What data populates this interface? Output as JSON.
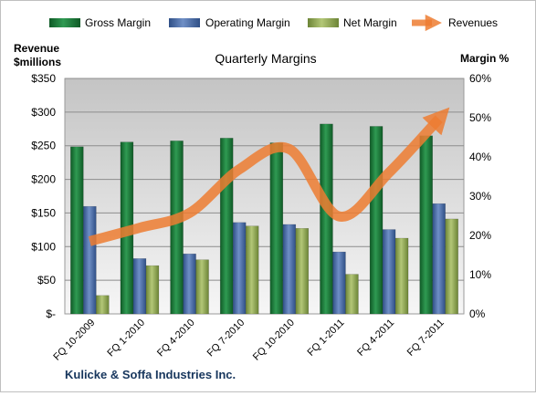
{
  "chart_data": {
    "type": "bar",
    "title": "Quarterly Margins",
    "company": "Kulicke & Soffa Industries Inc.",
    "left_axis": {
      "label_line1": "Revenue",
      "label_line2": "$millions",
      "range": [
        0,
        350
      ],
      "ticks": [
        "$-",
        "$50",
        "$100",
        "$150",
        "$200",
        "$250",
        "$300",
        "$350"
      ]
    },
    "right_axis": {
      "label": "Margin %",
      "range": [
        0,
        60
      ],
      "ticks": [
        "0%",
        "10%",
        "20%",
        "30%",
        "40%",
        "50%",
        "60%"
      ]
    },
    "categories": [
      "FQ 10-2009",
      "FQ 1-2010",
      "FQ 4-2010",
      "FQ 7-2010",
      "FQ 10-2010",
      "FQ 1-2011",
      "FQ 4-2011",
      "FQ 7-2011"
    ],
    "series": [
      {
        "name": "Gross Margin",
        "axis": "right",
        "kind": "bar",
        "color": "#1e7b3c",
        "values": [
          42.6,
          43.8,
          44.1,
          44.8,
          43.6,
          48.4,
          47.8,
          45.4
        ]
      },
      {
        "name": "Operating Margin",
        "axis": "right",
        "kind": "bar",
        "color": "#4a6faa",
        "values": [
          27.4,
          14.1,
          15.3,
          23.3,
          22.8,
          15.8,
          21.5,
          28.1
        ]
      },
      {
        "name": "Net Margin",
        "axis": "right",
        "kind": "bar",
        "color": "#90a84f",
        "values": [
          4.7,
          12.3,
          13.8,
          22.4,
          21.8,
          10.1,
          19.3,
          24.2
        ]
      },
      {
        "name": "Revenues",
        "axis": "left",
        "kind": "line",
        "color": "#ed7d31",
        "values": [
          108,
          128,
          150,
          215,
          245,
          145,
          210,
          290
        ]
      }
    ],
    "grid": true,
    "legend": "top"
  }
}
